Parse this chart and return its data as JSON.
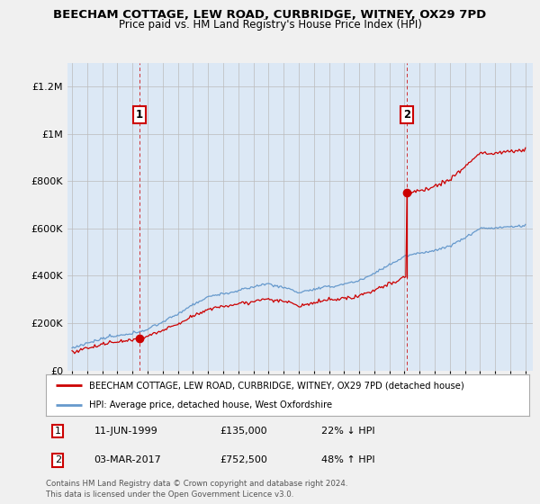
{
  "title": "BEECHAM COTTAGE, LEW ROAD, CURBRIDGE, WITNEY, OX29 7PD",
  "subtitle": "Price paid vs. HM Land Registry's House Price Index (HPI)",
  "legend_line1": "BEECHAM COTTAGE, LEW ROAD, CURBRIDGE, WITNEY, OX29 7PD (detached house)",
  "legend_line2": "HPI: Average price, detached house, West Oxfordshire",
  "transaction1_date": "11-JUN-1999",
  "transaction1_price": "£135,000",
  "transaction1_hpi": "22% ↓ HPI",
  "transaction2_date": "03-MAR-2017",
  "transaction2_price": "£752,500",
  "transaction2_hpi": "48% ↑ HPI",
  "footer": "Contains HM Land Registry data © Crown copyright and database right 2024.\nThis data is licensed under the Open Government Licence v3.0.",
  "ylim": [
    0,
    1300000
  ],
  "yticks": [
    0,
    200000,
    400000,
    600000,
    800000,
    1000000,
    1200000
  ],
  "ytick_labels": [
    "£0",
    "£200K",
    "£400K",
    "£600K",
    "£800K",
    "£1M",
    "£1.2M"
  ],
  "background_color": "#f0f0f0",
  "plot_bg_color": "#dce8f5",
  "red_color": "#cc0000",
  "blue_color": "#6699cc",
  "transaction1_year": 1999.44,
  "transaction2_year": 2017.17,
  "transaction1_price_val": 135000,
  "transaction2_price_val": 752500
}
